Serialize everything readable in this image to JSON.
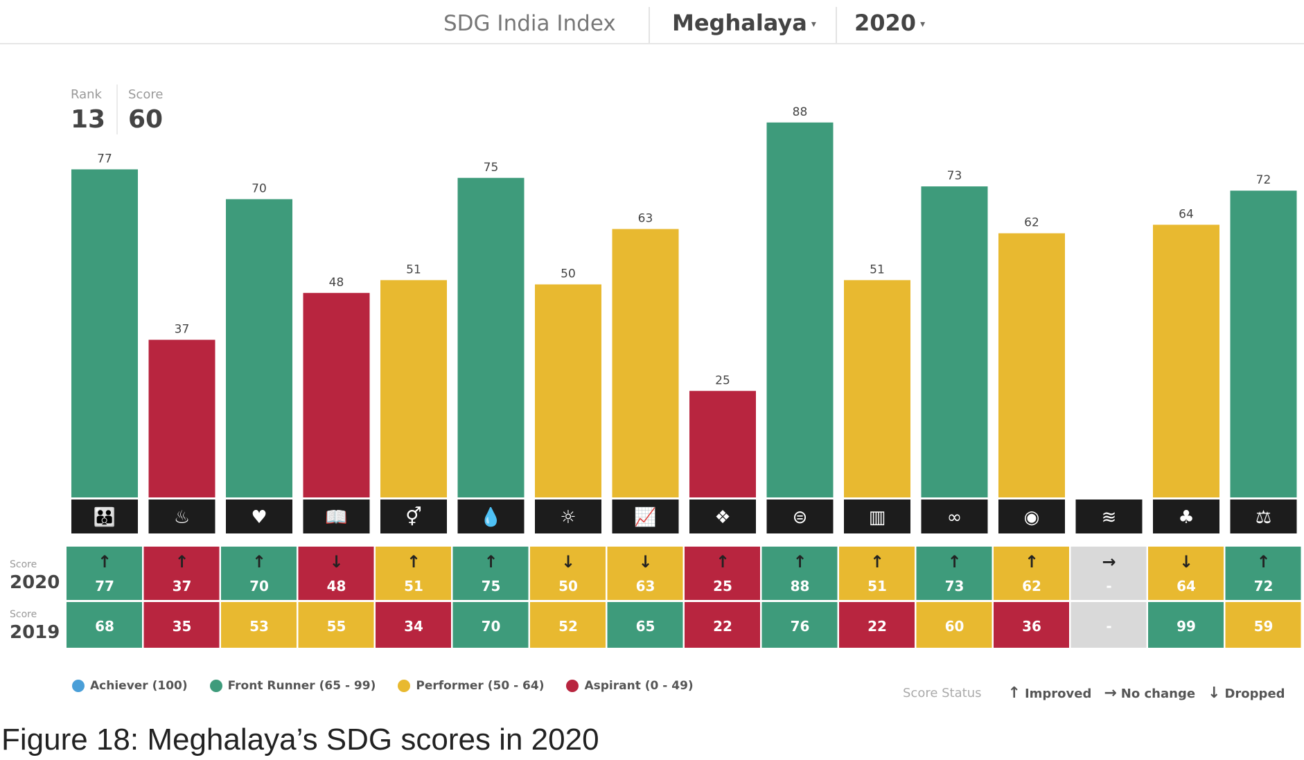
{
  "header": {
    "title": "SDG India Index",
    "state": "Meghalaya",
    "year": "2020",
    "caret": "▾"
  },
  "summary": {
    "rank_label": "Rank",
    "rank_value": "13",
    "score_label": "Score",
    "score_value": "60"
  },
  "rows": {
    "score_label": "Score",
    "year_2020": "2020",
    "year_2019": "2019"
  },
  "chart_data": {
    "type": "bar",
    "categories": [
      "SDG1",
      "SDG2",
      "SDG3",
      "SDG4",
      "SDG5",
      "SDG6",
      "SDG7",
      "SDG8",
      "SDG9",
      "SDG10",
      "SDG11",
      "SDG12",
      "SDG13",
      "SDG14",
      "SDG15",
      "SDG16"
    ],
    "icons": [
      "family-icon",
      "food-bowl-icon",
      "heartbeat-icon",
      "book-icon",
      "gender-icon",
      "water-drop-icon",
      "sun-icon",
      "growth-chart-icon",
      "industry-cubes-icon",
      "equality-icon",
      "city-icon",
      "infinity-icon",
      "eye-earth-icon",
      "fish-wave-icon",
      "tree-icon",
      "dove-gavel-icon"
    ],
    "series": [
      {
        "name": "2020",
        "values": [
          77,
          37,
          70,
          48,
          51,
          75,
          50,
          63,
          25,
          88,
          51,
          73,
          62,
          null,
          64,
          72
        ]
      },
      {
        "name": "2019",
        "values": [
          68,
          35,
          53,
          55,
          34,
          70,
          52,
          65,
          22,
          76,
          22,
          60,
          36,
          null,
          99,
          59
        ]
      }
    ],
    "labels_2020": [
      "77",
      "37",
      "70",
      "48",
      "51",
      "75",
      "50",
      "63",
      "25",
      "88",
      "51",
      "73",
      "62",
      "-",
      "64",
      "72"
    ],
    "labels_2019": [
      "68",
      "35",
      "53",
      "55",
      "34",
      "70",
      "52",
      "65",
      "22",
      "76",
      "22",
      "60",
      "36",
      "-",
      "99",
      "59"
    ],
    "status": [
      "up",
      "up",
      "up",
      "down",
      "up",
      "up",
      "down",
      "down",
      "up",
      "up",
      "up",
      "up",
      "up",
      "same",
      "down",
      "up"
    ],
    "ylim": [
      0,
      100
    ],
    "grid": false,
    "legend_placement": "bottom-left"
  },
  "legend": [
    {
      "label": "Achiever (100)",
      "color": "#4a9fd8"
    },
    {
      "label": "Front Runner (65 - 99)",
      "color": "#3e9b7b"
    },
    {
      "label": "Performer (50 - 64)",
      "color": "#e8b930"
    },
    {
      "label": "Aspirant (0 - 49)",
      "color": "#b8253f"
    }
  ],
  "score_status": {
    "label": "Score Status",
    "improved": "Improved",
    "no_change": "No change",
    "dropped": "Dropped"
  },
  "colors": {
    "front_runner": "#3e9b7b",
    "performer": "#e8b930",
    "aspirant": "#b8253f",
    "no_data": "#d9d9d9",
    "icon_bg": "#1c1c1c"
  },
  "caption": "Figure 18: Meghalaya’s SDG scores in 2020"
}
